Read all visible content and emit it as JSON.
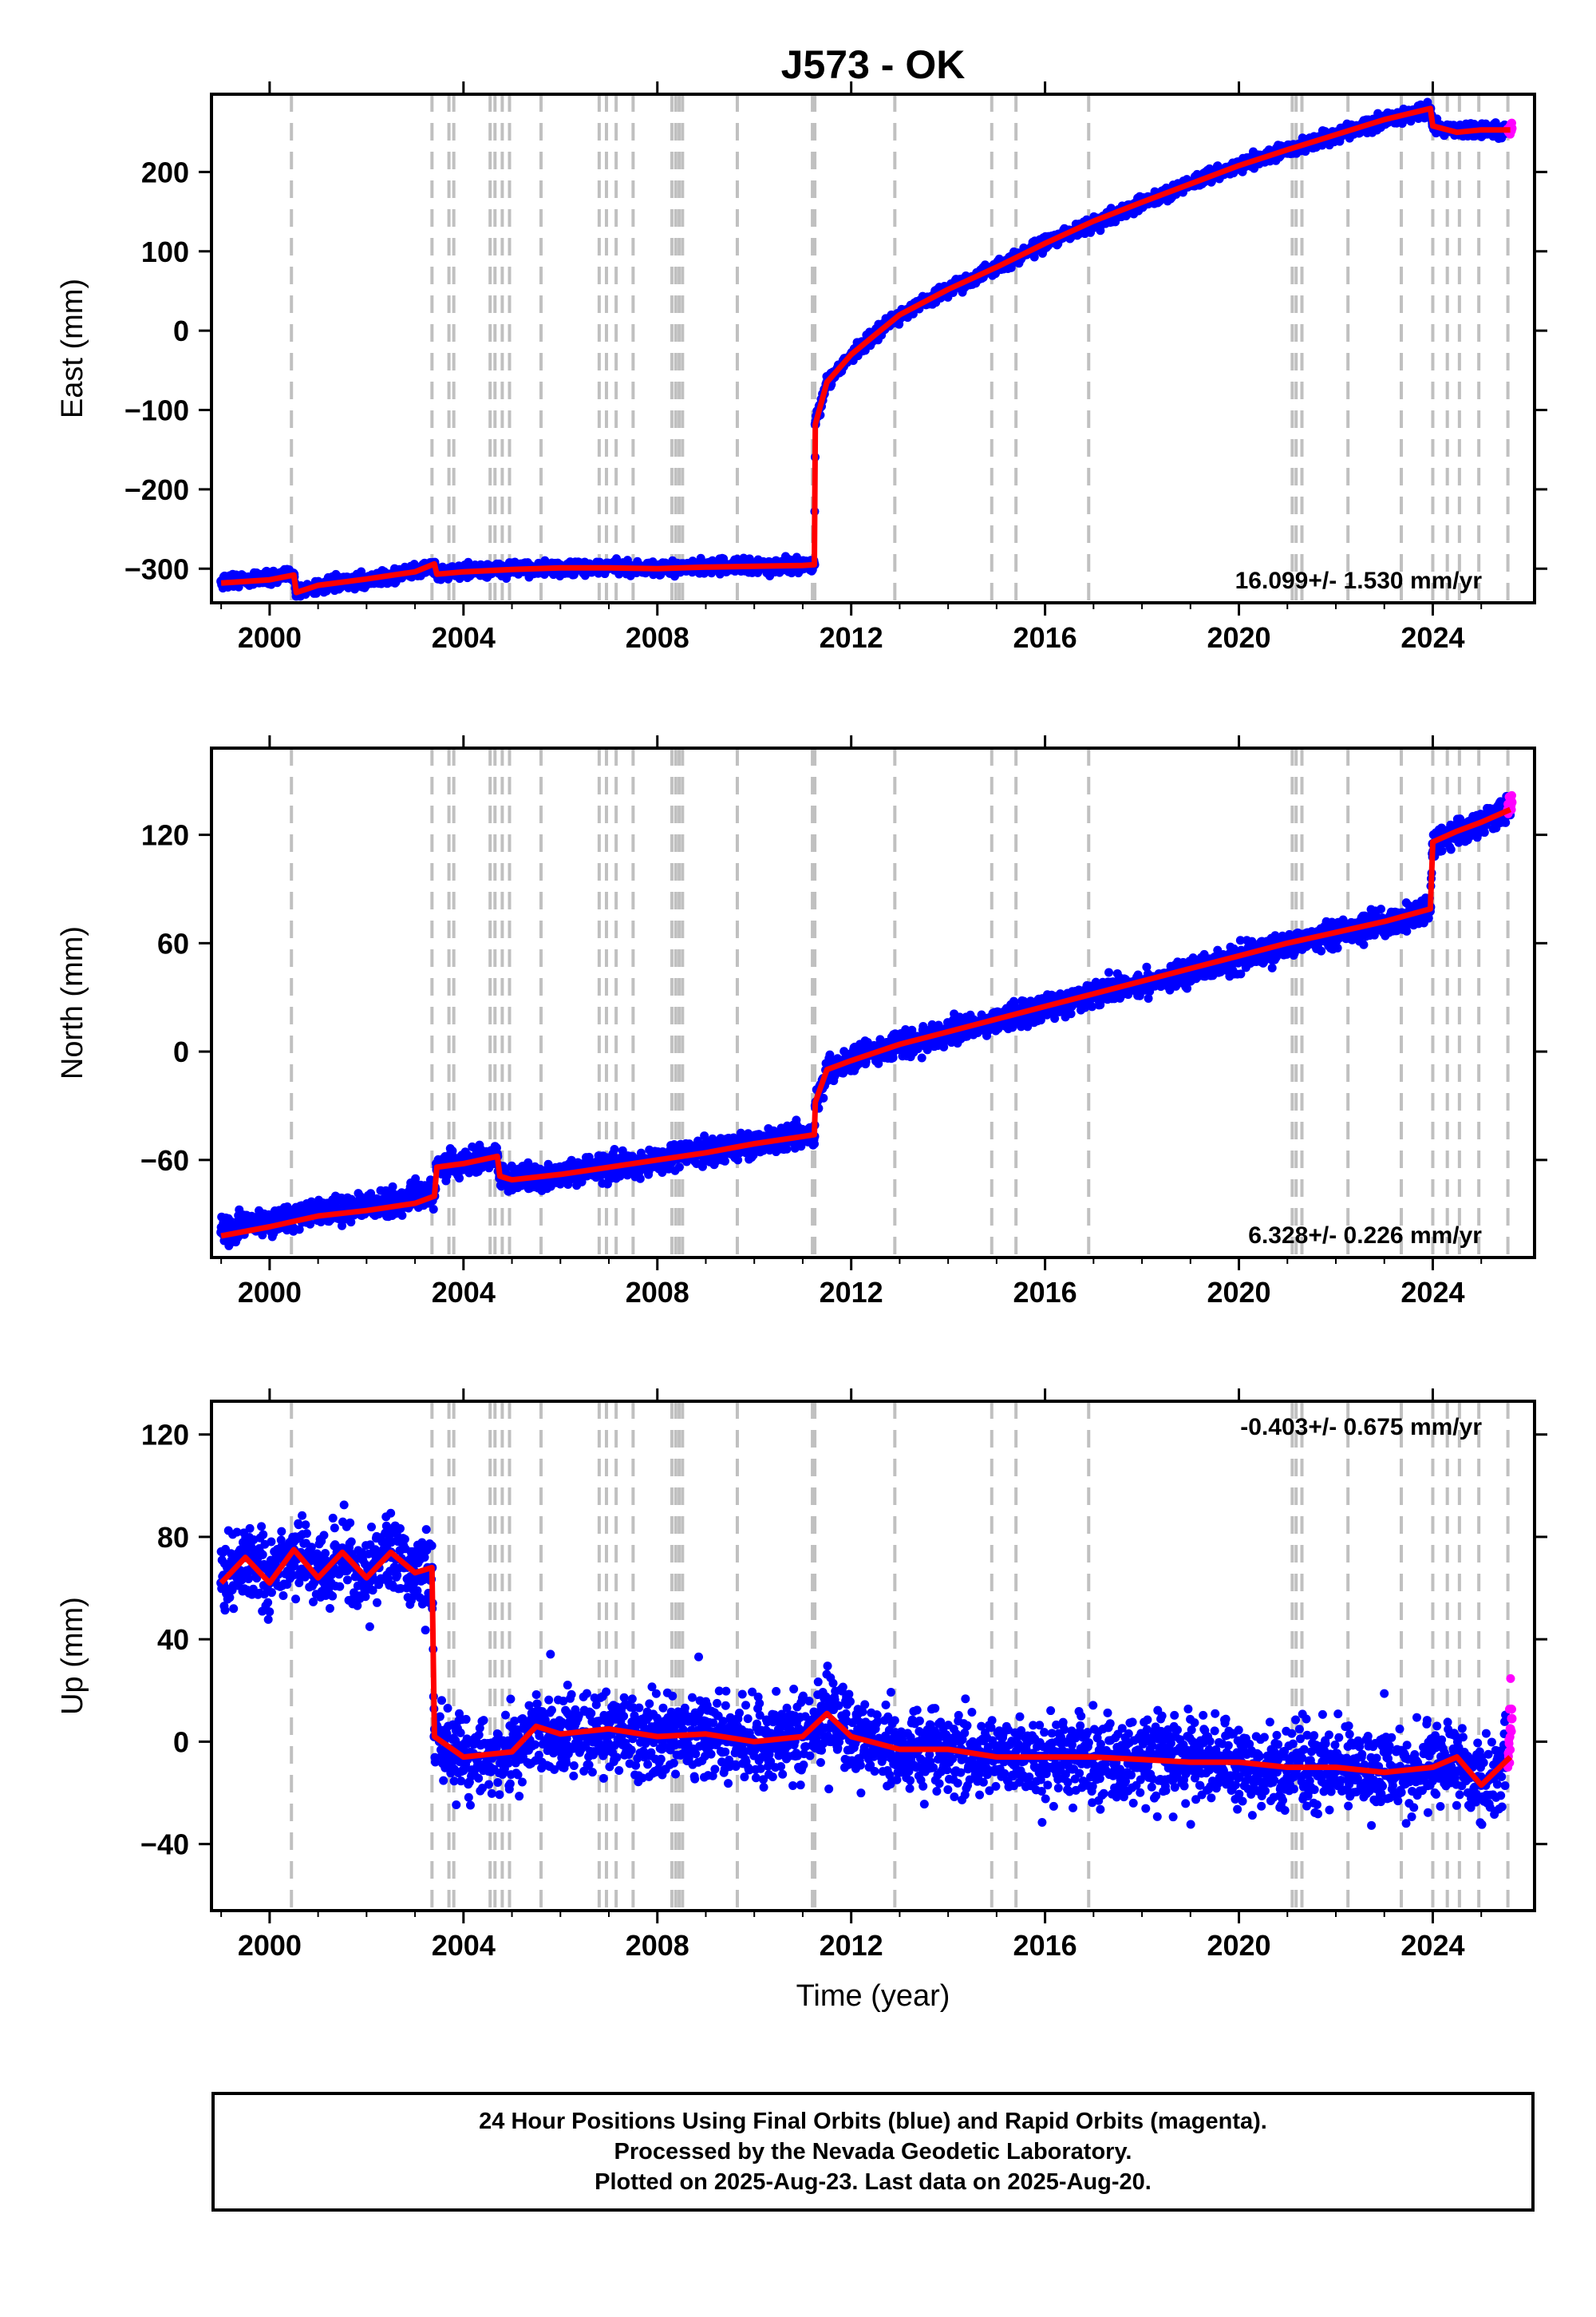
{
  "title": "J573 - OK",
  "footer": {
    "line1": "24 Hour Positions Using Final Orbits (blue) and Rapid Orbits (magenta).",
    "line2": "Processed by the Nevada Geodetic Laboratory.",
    "line3": "Plotted on 2025-Aug-23. Last data on 2025-Aug-20."
  },
  "colors": {
    "final_orbits": "#0000ff",
    "rapid_orbits": "#ff00ff",
    "model": "#ff0000",
    "event_lines": "#c0c0c0"
  },
  "chart_data": [
    {
      "type": "scatter",
      "component": "east",
      "title": "J573 - OK",
      "ylabel": "East (mm)",
      "xlabel": "",
      "xlim": [
        1998.8,
        2026.1
      ],
      "ylim": [
        -343,
        298
      ],
      "xticks": [
        2000,
        2004,
        2008,
        2012,
        2016,
        2020,
        2024
      ],
      "yticks": [
        -300,
        -200,
        -100,
        0,
        100,
        200
      ],
      "ytick_labels": [
        "−300",
        "−200",
        "−100",
        "0",
        "100",
        "200"
      ],
      "rate_annotation": "16.099+/- 1.530 mm/yr",
      "annotation_position": "bottom-right",
      "grid": false,
      "series": [
        {
          "name": "Final Orbits",
          "color": "#0000ff",
          "x": [
            1999.0,
            1999.5,
            2000.0,
            2000.5,
            2000.55,
            2001.0,
            2001.5,
            2002.0,
            2002.5,
            2003.0,
            2003.4,
            2003.45,
            2004.0,
            2005.0,
            2006.0,
            2007.0,
            2008.0,
            2009.0,
            2010.0,
            2011.0,
            2011.24,
            2011.26,
            2011.5,
            2012.0,
            2012.5,
            2013.0,
            2014.0,
            2015.0,
            2016.0,
            2017.0,
            2018.0,
            2019.0,
            2020.0,
            2021.0,
            2022.0,
            2023.0,
            2023.95,
            2024.0,
            2024.5,
            2025.0,
            2025.5
          ],
          "y": [
            -316,
            -314,
            -312,
            -307,
            -330,
            -322,
            -318,
            -314,
            -310,
            -303,
            -296,
            -307,
            -303,
            -300,
            -300,
            -298,
            -300,
            -297,
            -297,
            -296,
            -295,
            -118,
            -65,
            -30,
            -5,
            20,
            52,
            80,
            110,
            135,
            160,
            185,
            208,
            228,
            247,
            265,
            280,
            258,
            250,
            253,
            253
          ]
        },
        {
          "name": "Rapid Orbits",
          "color": "#ff00ff",
          "x": [
            2025.55,
            2025.6,
            2025.63
          ],
          "y": [
            254,
            256,
            255
          ]
        }
      ],
      "model": {
        "x": [
          1999.0,
          2000.0,
          2000.5,
          2000.55,
          2001.0,
          2002.0,
          2003.0,
          2003.4,
          2003.45,
          2004.0,
          2005.0,
          2006.0,
          2007.0,
          2008.0,
          2009.0,
          2010.0,
          2011.0,
          2011.24,
          2011.26,
          2011.5,
          2012.0,
          2012.5,
          2013.0,
          2014.0,
          2015.0,
          2016.0,
          2017.0,
          2018.0,
          2019.0,
          2020.0,
          2021.0,
          2022.0,
          2023.0,
          2023.95,
          2024.0,
          2024.5,
          2025.0,
          2025.6
        ],
        "y": [
          -318,
          -314,
          -308,
          -330,
          -321,
          -313,
          -304,
          -294,
          -307,
          -304,
          -301,
          -299,
          -299,
          -300,
          -298,
          -297,
          -296,
          -295,
          -118,
          -65,
          -30,
          -5,
          20,
          52,
          80,
          110,
          138,
          162,
          185,
          208,
          228,
          247,
          266,
          280,
          258,
          250,
          253,
          253
        ]
      }
    },
    {
      "type": "scatter",
      "component": "north",
      "ylabel": "North (mm)",
      "xlabel": "",
      "xlim": [
        1998.8,
        2026.1
      ],
      "ylim": [
        -114,
        168
      ],
      "xticks": [
        2000,
        2004,
        2008,
        2012,
        2016,
        2020,
        2024
      ],
      "yticks": [
        -60,
        0,
        60,
        120
      ],
      "ytick_labels": [
        "−60",
        "0",
        "60",
        "120"
      ],
      "rate_annotation": "6.328+/- 0.226 mm/yr",
      "annotation_position": "bottom-right",
      "grid": false,
      "series": [
        {
          "name": "Final Orbits",
          "color": "#0000ff",
          "x": [
            1999.0,
            1999.5,
            2000.0,
            2000.5,
            2001.0,
            2001.5,
            2002.0,
            2002.5,
            2003.0,
            2003.4,
            2003.45,
            2004.0,
            2004.7,
            2004.75,
            2005.0,
            2006.0,
            2007.0,
            2008.0,
            2009.0,
            2010.0,
            2011.0,
            2011.24,
            2011.26,
            2011.5,
            2012.0,
            2013.0,
            2014.0,
            2015.0,
            2016.0,
            2017.0,
            2018.0,
            2019.0,
            2020.0,
            2021.0,
            2022.0,
            2023.0,
            2023.9,
            2023.95,
            2024.0,
            2024.5,
            2025.0,
            2025.6
          ],
          "y": [
            -100,
            -96,
            -95,
            -91,
            -88,
            -87,
            -86,
            -84,
            -80,
            -80,
            -64,
            -62,
            -58,
            -69,
            -70,
            -68,
            -64,
            -60,
            -55,
            -51,
            -47,
            -47,
            -30,
            -10,
            -4,
            4,
            10,
            17,
            25,
            31,
            38,
            45,
            52,
            59,
            65,
            71,
            78,
            80,
            115,
            122,
            127,
            135
          ]
        },
        {
          "name": "Rapid Orbits",
          "color": "#ff00ff",
          "x": [
            2025.55,
            2025.6,
            2025.63
          ],
          "y": [
            134,
            137,
            138
          ]
        }
      ],
      "model": {
        "x": [
          1999.0,
          2000.0,
          2001.0,
          2002.0,
          2003.0,
          2003.4,
          2003.45,
          2004.0,
          2004.7,
          2004.75,
          2005.0,
          2006.0,
          2007.0,
          2008.0,
          2009.0,
          2010.0,
          2011.0,
          2011.24,
          2011.26,
          2011.5,
          2012.0,
          2013.0,
          2014.0,
          2015.0,
          2016.0,
          2017.0,
          2018.0,
          2019.0,
          2020.0,
          2021.0,
          2022.0,
          2023.0,
          2023.95,
          2024.0,
          2024.5,
          2025.0,
          2025.6
        ],
        "y": [
          -102,
          -97,
          -91,
          -88,
          -84,
          -80,
          -64,
          -62,
          -58,
          -69,
          -71,
          -68,
          -64,
          -60,
          -56,
          -51,
          -47,
          -46,
          -28,
          -10,
          -5,
          4,
          11,
          18,
          25,
          32,
          39,
          46,
          53,
          60,
          66,
          72,
          79,
          116,
          122,
          127,
          134
        ]
      }
    },
    {
      "type": "scatter",
      "component": "up",
      "ylabel": "Up (mm)",
      "xlabel": "Time (year)",
      "xlim": [
        1998.8,
        2026.1
      ],
      "ylim": [
        -66,
        133
      ],
      "xticks": [
        2000,
        2004,
        2008,
        2012,
        2016,
        2020,
        2024
      ],
      "yticks": [
        -40,
        0,
        40,
        80,
        120
      ],
      "ytick_labels": [
        "−40",
        "0",
        "40",
        "80",
        "120"
      ],
      "rate_annotation": "-0.403+/- 0.675 mm/yr",
      "annotation_position": "top-right",
      "grid": false,
      "series": [
        {
          "name": "Final Orbits",
          "color": "#0000ff",
          "x": [
            1999.0,
            1999.5,
            2000.0,
            2000.5,
            2001.0,
            2001.5,
            2002.0,
            2002.5,
            2003.0,
            2003.35,
            2003.4,
            2004.0,
            2005.0,
            2005.5,
            2006.0,
            2007.0,
            2008.0,
            2009.0,
            2010.0,
            2011.0,
            2011.5,
            2012.0,
            2013.0,
            2014.0,
            2015.0,
            2016.0,
            2017.0,
            2018.0,
            2019.0,
            2020.0,
            2021.0,
            2022.0,
            2023.0,
            2024.0,
            2024.5,
            2025.0,
            2025.5
          ],
          "y": [
            62,
            72,
            62,
            75,
            64,
            74,
            64,
            74,
            66,
            68,
            2,
            -6,
            -4,
            6,
            3,
            5,
            2,
            3,
            0,
            2,
            11,
            2,
            -3,
            -3,
            -6,
            -6,
            -6,
            -7,
            -8,
            -8,
            -10,
            -10,
            -12,
            -10,
            -6,
            -17,
            -10
          ]
        },
        {
          "name": "Rapid Orbits",
          "color": "#ff00ff",
          "x": [
            2025.55,
            2025.6,
            2025.63
          ],
          "y": [
            -8,
            5,
            9
          ]
        }
      ],
      "model": {
        "x": [
          1999.0,
          1999.5,
          2000.0,
          2000.5,
          2001.0,
          2001.5,
          2002.0,
          2002.5,
          2003.0,
          2003.35,
          2003.4,
          2004.0,
          2005.0,
          2005.5,
          2006.0,
          2007.0,
          2008.0,
          2009.0,
          2010.0,
          2011.0,
          2011.5,
          2012.0,
          2013.0,
          2014.0,
          2015.0,
          2016.0,
          2017.0,
          2018.0,
          2019.0,
          2020.0,
          2021.0,
          2022.0,
          2023.0,
          2024.0,
          2024.5,
          2025.0,
          2025.6
        ],
        "y": [
          62,
          72,
          62,
          75,
          64,
          74,
          64,
          74,
          66,
          68,
          2,
          -6,
          -4,
          6,
          3,
          5,
          2,
          3,
          0,
          2,
          11,
          2,
          -3,
          -3,
          -6,
          -6,
          -6,
          -7,
          -8,
          -8,
          -10,
          -10,
          -12,
          -10,
          -6,
          -17,
          -6
        ]
      }
    }
  ],
  "event_lines_x": [
    2000.45,
    2003.35,
    2003.7,
    2003.8,
    2004.55,
    2004.65,
    2004.8,
    2004.95,
    2005.6,
    2006.8,
    2006.95,
    2007.15,
    2007.5,
    2008.3,
    2008.38,
    2008.45,
    2008.52,
    2009.65,
    2011.2,
    2011.25,
    2012.9,
    2014.9,
    2015.4,
    2016.9,
    2021.1,
    2021.18,
    2021.3,
    2022.25,
    2023.35,
    2024.0,
    2024.3,
    2024.55,
    2024.95,
    2025.55
  ]
}
